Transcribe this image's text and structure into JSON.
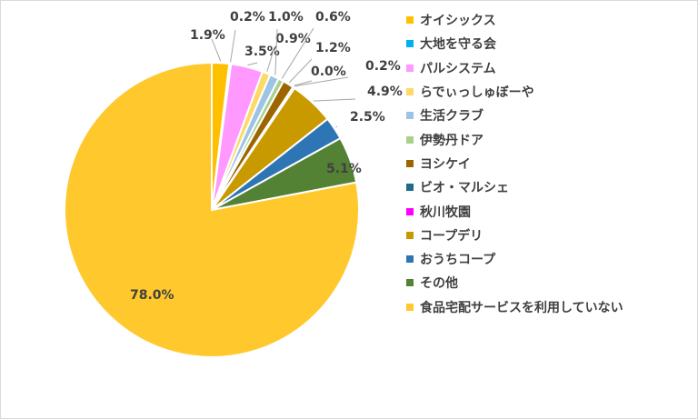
{
  "chart_data": {
    "type": "pie",
    "title": "",
    "legend_position": "right",
    "start_angle_deg": 0,
    "direction": "clockwise",
    "slices": [
      {
        "label": "オイシックス",
        "value": 1.9,
        "value_label": "1.9%",
        "color": "#ffc000"
      },
      {
        "label": "大地を守る会",
        "value": 0.2,
        "value_label": "0.2%",
        "color": "#00b0f0"
      },
      {
        "label": "パルシステム",
        "value": 3.5,
        "value_label": "3.5%",
        "color": "#ff99ff"
      },
      {
        "label": "らでぃっしゅぼーや",
        "value": 0.9,
        "value_label": "0.9%",
        "color": "#ffd966"
      },
      {
        "label": "生活クラブ",
        "value": 1.0,
        "value_label": "1.0%",
        "color": "#9dc3e6"
      },
      {
        "label": "伊勢丹ドア",
        "value": 0.6,
        "value_label": "0.6%",
        "color": "#a9d18e"
      },
      {
        "label": "ヨシケイ",
        "value": 1.2,
        "value_label": "1.2%",
        "color": "#9c6500"
      },
      {
        "label": "ビオ・マルシェ",
        "value": 0.0,
        "value_label": "0.0%",
        "color": "#1f6b8a"
      },
      {
        "label": "秋川牧園",
        "value": 0.2,
        "value_label": "0.2%",
        "color": "#ff00ff"
      },
      {
        "label": "コープデリ",
        "value": 4.9,
        "value_label": "4.9%",
        "color": "#c99a00"
      },
      {
        "label": "おうちコープ",
        "value": 2.5,
        "value_label": "2.5%",
        "color": "#2e75b6"
      },
      {
        "label": "その他",
        "value": 5.1,
        "value_label": "5.1%",
        "color": "#548235"
      },
      {
        "label": "食品宅配サービスを利用していない",
        "value": 78.0,
        "value_label": "78.0%",
        "color": "#ffc82c"
      }
    ]
  }
}
